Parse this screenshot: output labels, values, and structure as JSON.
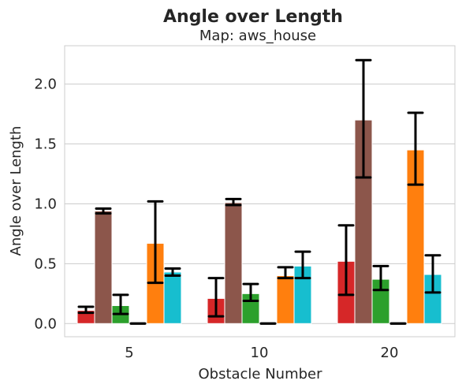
{
  "chart_data": {
    "type": "bar",
    "title": "Angle over Length",
    "subtitle": "Map: aws_house",
    "xlabel": "Obstacle Number",
    "ylabel": "Angle over Length",
    "categories": [
      "5",
      "10",
      "20"
    ],
    "ylim": [
      -0.11,
      2.32
    ],
    "yticks": [
      0.0,
      0.5,
      1.0,
      1.5,
      2.0
    ],
    "ytick_labels": [
      "0.0",
      "0.5",
      "1.0",
      "1.5",
      "2.0"
    ],
    "grid": "horizontal",
    "legend": "none",
    "series": [
      {
        "color": "#d62728",
        "values": [
          0.11,
          0.21,
          0.52
        ],
        "err_low": [
          0.09,
          0.06,
          0.24
        ],
        "err_high": [
          0.14,
          0.38,
          0.82
        ]
      },
      {
        "color": "#8c564b",
        "values": [
          0.94,
          1.01,
          1.7
        ],
        "err_low": [
          0.92,
          0.99,
          1.22
        ],
        "err_high": [
          0.96,
          1.04,
          2.2
        ]
      },
      {
        "color": "#2ca02c",
        "values": [
          0.15,
          0.25,
          0.37
        ],
        "err_low": [
          0.08,
          0.19,
          0.28
        ],
        "err_high": [
          0.24,
          0.33,
          0.48
        ]
      },
      {
        "color": "#7f7f7f",
        "values": [
          0.0,
          0.0,
          0.0
        ],
        "err_low": [
          0.0,
          0.0,
          0.0
        ],
        "err_high": [
          0.0,
          0.0,
          0.0
        ]
      },
      {
        "color": "#ff7f0e",
        "values": [
          0.67,
          0.4,
          1.45
        ],
        "err_low": [
          0.34,
          0.38,
          1.16
        ],
        "err_high": [
          1.02,
          0.47,
          1.76
        ]
      },
      {
        "color": "#17becf",
        "values": [
          0.43,
          0.48,
          0.41
        ],
        "err_low": [
          0.4,
          0.38,
          0.26
        ],
        "err_high": [
          0.46,
          0.6,
          0.57
        ]
      }
    ]
  }
}
